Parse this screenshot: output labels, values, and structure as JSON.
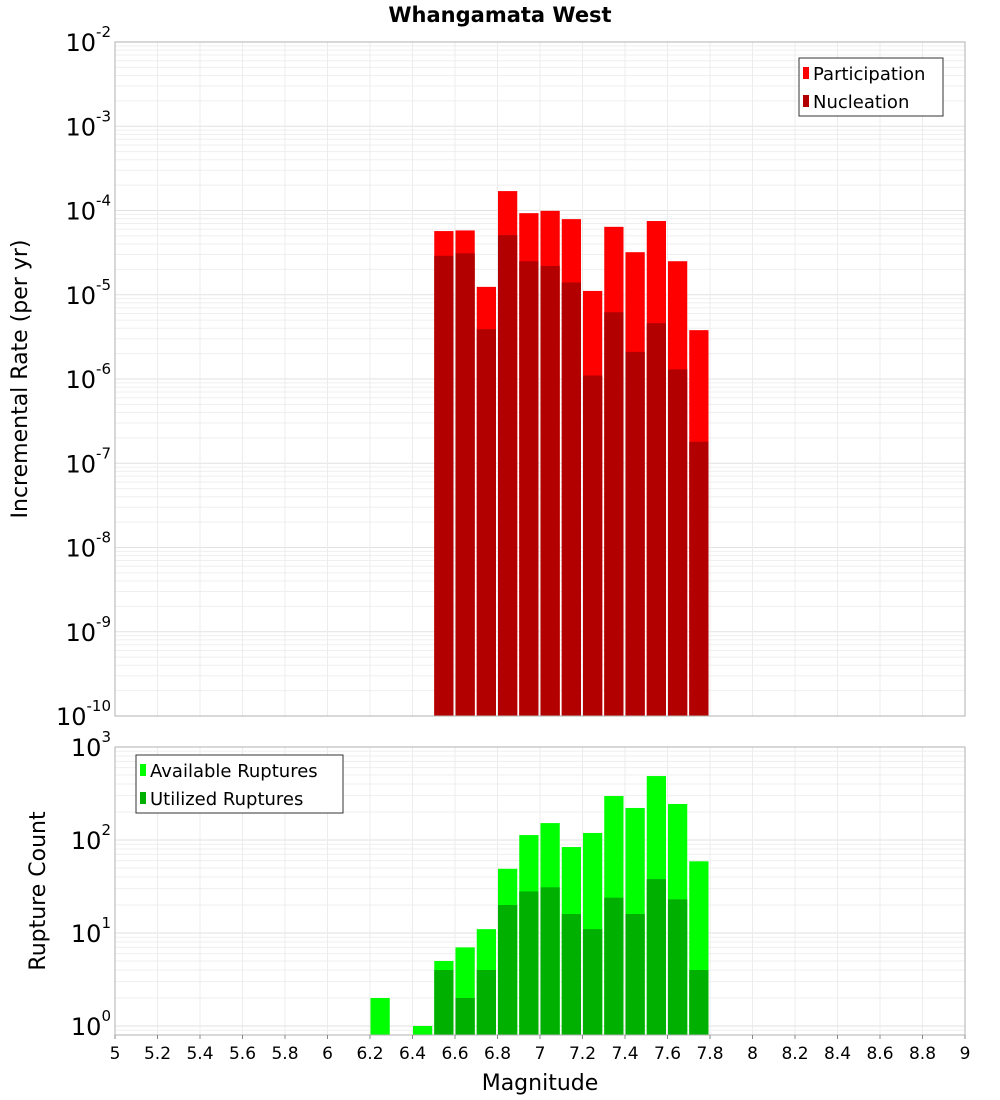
{
  "chart_data": [
    {
      "type": "bar",
      "title": "Whangamata West",
      "xlabel": "Magnitude",
      "ylabel": "Incremental Rate (per yr)",
      "yscale": "log",
      "ylim": [
        1e-10,
        0.01
      ],
      "xlim": [
        5,
        9
      ],
      "grid": true,
      "legend_position": "top-right",
      "x": [
        6.55,
        6.65,
        6.75,
        6.85,
        6.95,
        7.05,
        7.15,
        7.25,
        7.35,
        7.45,
        7.55,
        7.65,
        7.75
      ],
      "bin_width": 0.1,
      "series": [
        {
          "name": "Participation",
          "color": "#ff0000",
          "values": [
            5.7e-05,
            5.8e-05,
            1.24e-05,
            0.00017,
            9.3e-05,
            9.9e-05,
            7.9e-05,
            1.11e-05,
            6.4e-05,
            3.2e-05,
            7.5e-05,
            2.5e-05,
            3.8e-06
          ]
        },
        {
          "name": "Nucleation",
          "color": "#b20000",
          "values": [
            2.9e-05,
            3.1e-05,
            3.9e-06,
            5.1e-05,
            2.5e-05,
            2.2e-05,
            1.4e-05,
            1.1e-06,
            6.2e-06,
            2.1e-06,
            4.6e-06,
            1.3e-06,
            1.8e-07
          ]
        }
      ],
      "ytick_exponents": [
        -10,
        -9,
        -8,
        -7,
        -6,
        -5,
        -4,
        -3,
        -2
      ]
    },
    {
      "type": "bar",
      "xlabel": "Magnitude",
      "ylabel": "Rupture Count",
      "yscale": "log",
      "ylim": [
        0.8,
        1000
      ],
      "xlim": [
        5,
        9
      ],
      "grid": true,
      "legend_position": "top-left",
      "x": [
        6.25,
        6.45,
        6.55,
        6.65,
        6.75,
        6.85,
        6.95,
        7.05,
        7.15,
        7.25,
        7.35,
        7.45,
        7.55,
        7.65,
        7.75
      ],
      "bin_width": 0.1,
      "series": [
        {
          "name": "Available Ruptures",
          "color": "#00ff00",
          "values": [
            2,
            1,
            5,
            7,
            11,
            49,
            113,
            152,
            84,
            119,
            297,
            221,
            487,
            244,
            59
          ]
        },
        {
          "name": "Utilized Ruptures",
          "color": "#00b000",
          "values": [
            0,
            0,
            4,
            2,
            4,
            20,
            28,
            31,
            16,
            11,
            24,
            16,
            38,
            23,
            4
          ]
        }
      ],
      "ytick_exponents": [
        0,
        1,
        2,
        3
      ],
      "xticks": [
        "5",
        "5.2",
        "5.4",
        "5.6",
        "5.8",
        "6",
        "6.2",
        "6.4",
        "6.6",
        "6.8",
        "7",
        "7.2",
        "7.4",
        "7.6",
        "7.8",
        "8",
        "8.2",
        "8.4",
        "8.6",
        "8.8",
        "9"
      ]
    }
  ]
}
